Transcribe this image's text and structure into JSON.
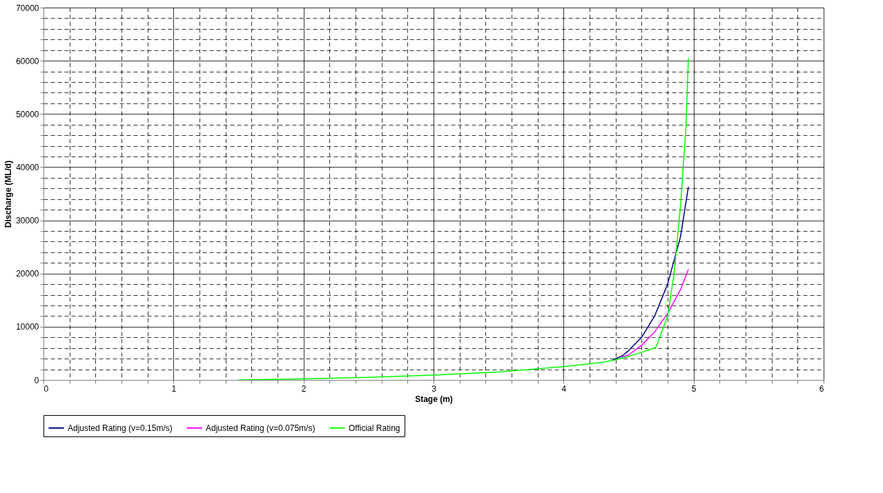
{
  "chart_data": {
    "type": "line",
    "xlabel": "Stage (m)",
    "ylabel": "Discharge (ML/d)",
    "xlim": [
      0,
      6
    ],
    "ylim": [
      0,
      70000
    ],
    "xticks": [
      0,
      {
        "value": 0.2,
        "label": null
      },
      {
        "value": 0.4,
        "label": null
      },
      {
        "value": 0.6,
        "label": null
      },
      {
        "value": 0.8,
        "label": null
      },
      1,
      {
        "value": 1.2,
        "label": null
      },
      {
        "value": 1.4,
        "label": null
      },
      {
        "value": 1.6,
        "label": null
      },
      {
        "value": 1.8,
        "label": null
      },
      2,
      {
        "value": 2.2,
        "label": null
      },
      {
        "value": 2.4,
        "label": null
      },
      {
        "value": 2.6,
        "label": null
      },
      {
        "value": 2.8,
        "label": null
      },
      3,
      {
        "value": 3.2,
        "label": null
      },
      {
        "value": 3.4,
        "label": null
      },
      {
        "value": 3.6,
        "label": null
      },
      {
        "value": 3.8,
        "label": null
      },
      4,
      {
        "value": 4.2,
        "label": null
      },
      {
        "value": 4.4,
        "label": null
      },
      {
        "value": 4.6,
        "label": null
      },
      {
        "value": 4.8,
        "label": null
      },
      5,
      {
        "value": 5.2,
        "label": null
      },
      {
        "value": 5.4,
        "label": null
      },
      {
        "value": 5.6,
        "label": null
      },
      {
        "value": 5.8,
        "label": null
      },
      6
    ],
    "yticks": [
      0,
      {
        "value": 2000,
        "label": null
      },
      {
        "value": 4000,
        "label": null
      },
      {
        "value": 6000,
        "label": null
      },
      {
        "value": 8000,
        "label": null
      },
      10000,
      {
        "value": 12000,
        "label": null
      },
      {
        "value": 14000,
        "label": null
      },
      {
        "value": 16000,
        "label": null
      },
      {
        "value": 18000,
        "label": null
      },
      20000,
      {
        "value": 22000,
        "label": null
      },
      {
        "value": 24000,
        "label": null
      },
      {
        "value": 26000,
        "label": null
      },
      {
        "value": 28000,
        "label": null
      },
      30000,
      {
        "value": 32000,
        "label": null
      },
      {
        "value": 34000,
        "label": null
      },
      {
        "value": 36000,
        "label": null
      },
      {
        "value": 38000,
        "label": null
      },
      40000,
      {
        "value": 42000,
        "label": null
      },
      {
        "value": 44000,
        "label": null
      },
      {
        "value": 46000,
        "label": null
      },
      {
        "value": 48000,
        "label": null
      },
      50000,
      {
        "value": 52000,
        "label": null
      },
      {
        "value": 54000,
        "label": null
      },
      {
        "value": 56000,
        "label": null
      },
      {
        "value": 58000,
        "label": null
      },
      60000,
      {
        "value": 62000,
        "label": null
      },
      {
        "value": 64000,
        "label": null
      },
      {
        "value": 66000,
        "label": null
      },
      {
        "value": 68000,
        "label": null
      },
      70000
    ],
    "grid": true,
    "legend": "bottom",
    "line_style": "solid",
    "marker": "none",
    "series": [
      {
        "name": "Adjusted Rating (v=0.15m/s)",
        "color": "#000080",
        "x": [
          4.38,
          4.45,
          4.5,
          4.6,
          4.7,
          4.8,
          4.9,
          4.96
        ],
        "values": [
          3800,
          4500,
          5500,
          8000,
          12000,
          18000,
          27000,
          36300
        ]
      },
      {
        "name": "Adjusted Rating (v=0.075m/s)",
        "color": "#ff00ff",
        "x": [
          4.45,
          4.5,
          4.6,
          4.7,
          4.8,
          4.9,
          4.96
        ],
        "values": [
          4300,
          4700,
          6500,
          9000,
          12500,
          17000,
          20800
        ]
      },
      {
        "name": "Official Rating",
        "color": "#00ff00",
        "x": [
          1.5,
          2,
          2.5,
          3,
          3.5,
          4,
          4.3,
          4.4,
          4.5,
          4.6,
          4.71,
          4.8,
          4.85,
          4.9,
          4.94,
          4.96
        ],
        "values": [
          0,
          200,
          500,
          900,
          1500,
          2500,
          3300,
          3800,
          4400,
          5200,
          6100,
          12000,
          20000,
          33000,
          47000,
          60500
        ]
      }
    ]
  }
}
